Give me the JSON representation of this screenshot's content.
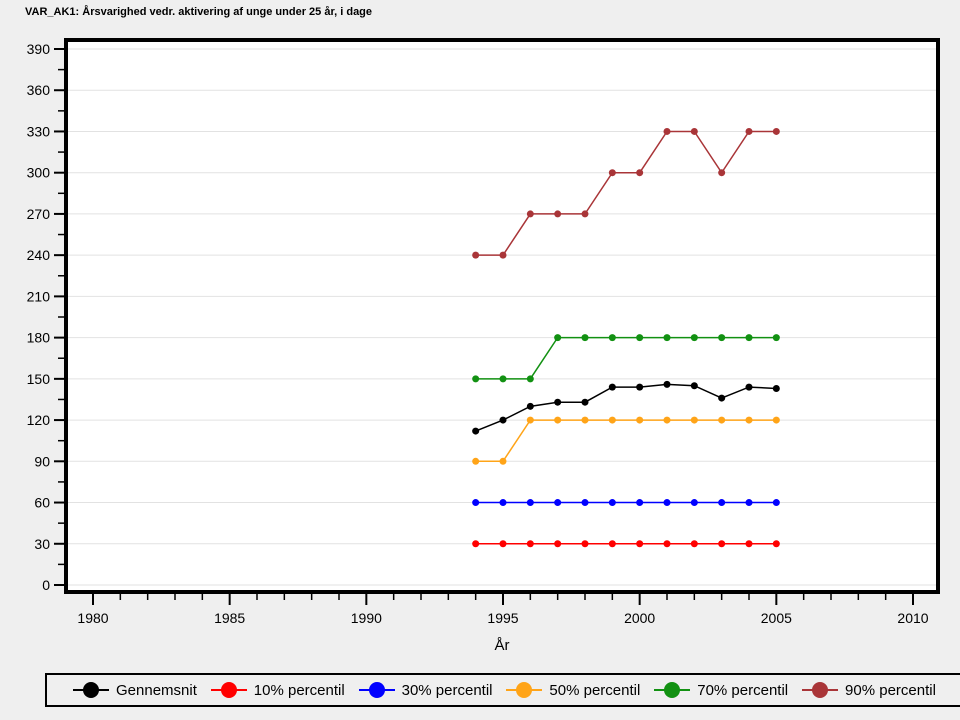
{
  "title": "VAR_AK1: Årsvarighed vedr. aktivering af unge under 25 år, i dage",
  "colors": {
    "page_background": "#efefef",
    "plot_background": "#ffffff",
    "plot_border": "#000000",
    "gridline": "#e2e2e2",
    "tick": "#000000"
  },
  "chart_data": {
    "type": "line",
    "title": "VAR_AK1: Årsvarighed vedr. aktivering af unge under 25 år, i dage",
    "xlabel": "År",
    "ylabel": "",
    "xlim": [
      1979,
      2011
    ],
    "ylim": [
      0,
      390
    ],
    "x_tick_labels": [
      "1980",
      "1985",
      "1990",
      "1995",
      "2000",
      "2005",
      "2010"
    ],
    "x_major_ticks": [
      1980,
      1985,
      1990,
      1995,
      2000,
      2005,
      2010
    ],
    "x_minor_step": 1,
    "y_major_ticks": [
      0,
      30,
      60,
      90,
      120,
      150,
      180,
      210,
      240,
      270,
      300,
      330,
      360,
      390
    ],
    "y_minor_step": 15,
    "grid": "horizontal",
    "legend_position": "bottom",
    "x": [
      1994,
      1995,
      1996,
      1997,
      1998,
      1999,
      2000,
      2001,
      2002,
      2003,
      2004,
      2005
    ],
    "series": [
      {
        "name": "Gennemsnit",
        "color": "#000000",
        "values": [
          112,
          120,
          130,
          133,
          133,
          144,
          144,
          146,
          145,
          136,
          144,
          143
        ]
      },
      {
        "name": "10% percentil",
        "color": "#ff0000",
        "values": [
          30,
          30,
          30,
          30,
          30,
          30,
          30,
          30,
          30,
          30,
          30,
          30
        ]
      },
      {
        "name": "30% percentil",
        "color": "#0000ff",
        "values": [
          60,
          60,
          60,
          60,
          60,
          60,
          60,
          60,
          60,
          60,
          60,
          60
        ]
      },
      {
        "name": "50% percentil",
        "color": "#ffa418",
        "values": [
          90,
          90,
          120,
          120,
          120,
          120,
          120,
          120,
          120,
          120,
          120,
          120
        ]
      },
      {
        "name": "70% percentil",
        "color": "#129112",
        "values": [
          150,
          150,
          150,
          180,
          180,
          180,
          180,
          180,
          180,
          180,
          180,
          180
        ]
      },
      {
        "name": "90% percentil",
        "color": "#a93538",
        "values": [
          240,
          240,
          270,
          270,
          270,
          300,
          300,
          330,
          330,
          300,
          330,
          330
        ]
      }
    ]
  }
}
